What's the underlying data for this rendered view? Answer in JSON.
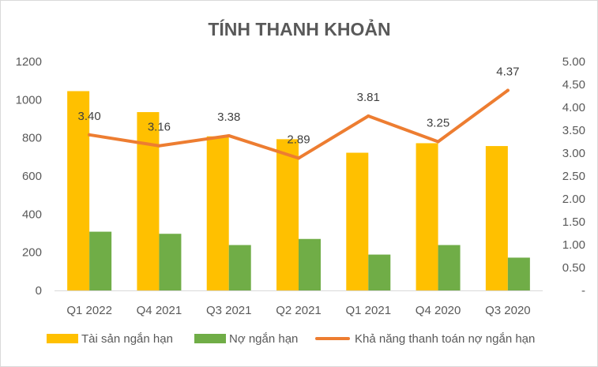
{
  "chart_data": {
    "type": "bar",
    "title": "TÍNH THANH KHOẢN",
    "categories": [
      "Q1 2022",
      "Q4 2021",
      "Q3 2021",
      "Q2 2021",
      "Q1 2021",
      "Q4 2020",
      "Q3 2020"
    ],
    "series": [
      {
        "name": "Tài sản ngắn hạn",
        "type": "bar",
        "axis": "left",
        "color": "#FFC000",
        "values": [
          1045,
          935,
          808,
          793,
          722,
          772,
          757
        ]
      },
      {
        "name": "Nợ ngắn hạn",
        "type": "bar",
        "axis": "left",
        "color": "#70AD47",
        "values": [
          308,
          297,
          238,
          270,
          188,
          238,
          172
        ]
      },
      {
        "name": "Khả năng thanh toán nợ ngắn hạn",
        "type": "line",
        "axis": "right",
        "color": "#ED7D31",
        "values": [
          3.4,
          3.16,
          3.38,
          2.89,
          3.81,
          3.25,
          4.37
        ],
        "labels": [
          "3.40",
          "3.16",
          "3.38",
          "2.89",
          "3.81",
          "3.25",
          "4.37"
        ]
      }
    ],
    "left_axis": {
      "min": 0,
      "max": 1200,
      "ticks": [
        0,
        200,
        400,
        600,
        800,
        1000,
        1200
      ],
      "tick_labels": [
        "0",
        "200",
        "400",
        "600",
        "800",
        "1000",
        "1200"
      ]
    },
    "right_axis": {
      "min": 0,
      "max": 5,
      "ticks": [
        0,
        0.5,
        1,
        1.5,
        2,
        2.5,
        3,
        3.5,
        4,
        4.5,
        5
      ],
      "tick_labels": [
        "-",
        "0.50",
        "1.00",
        "1.50",
        "2.00",
        "2.50",
        "3.00",
        "3.50",
        "4.00",
        "4.50",
        "5.00"
      ]
    },
    "grid": false,
    "legend_position": "bottom"
  }
}
